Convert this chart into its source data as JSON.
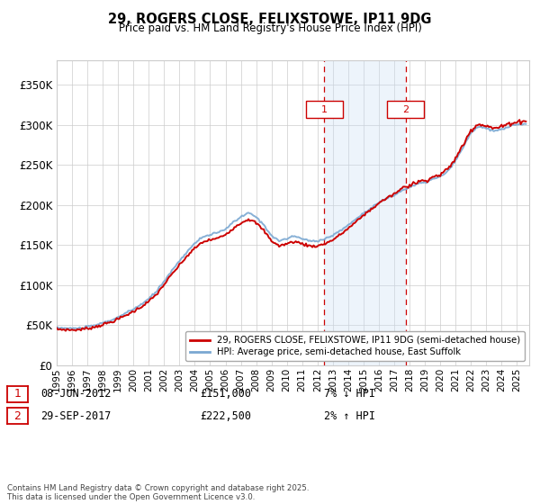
{
  "title": "29, ROGERS CLOSE, FELIXSTOWE, IP11 9DG",
  "subtitle": "Price paid vs. HM Land Registry's House Price Index (HPI)",
  "ylim": [
    0,
    380000
  ],
  "yticks": [
    0,
    50000,
    100000,
    150000,
    200000,
    250000,
    300000,
    350000
  ],
  "ytick_labels": [
    "£0",
    "£50K",
    "£100K",
    "£150K",
    "£200K",
    "£250K",
    "£300K",
    "£350K"
  ],
  "xlim_start": 1995.0,
  "xlim_end": 2025.8,
  "purchase1_date": 2012.44,
  "purchase1_price": 151000,
  "purchase1_label": "1",
  "purchase1_text": "08-JUN-2012",
  "purchase1_amount": "£151,000",
  "purchase1_hpi": "7% ↓ HPI",
  "purchase2_date": 2017.75,
  "purchase2_price": 222500,
  "purchase2_label": "2",
  "purchase2_text": "29-SEP-2017",
  "purchase2_amount": "£222,500",
  "purchase2_hpi": "2% ↑ HPI",
  "property_line_color": "#cc0000",
  "hpi_line_color": "#7aa8d2",
  "grid_color": "#cccccc",
  "shaded_region_color": "#cce0f5",
  "dashed_line_color": "#cc0000",
  "legend_property": "29, ROGERS CLOSE, FELIXSTOWE, IP11 9DG (semi-detached house)",
  "legend_hpi": "HPI: Average price, semi-detached house, East Suffolk",
  "footer_text": "Contains HM Land Registry data © Crown copyright and database right 2025.\nThis data is licensed under the Open Government Licence v3.0.",
  "background_color": "#ffffff"
}
